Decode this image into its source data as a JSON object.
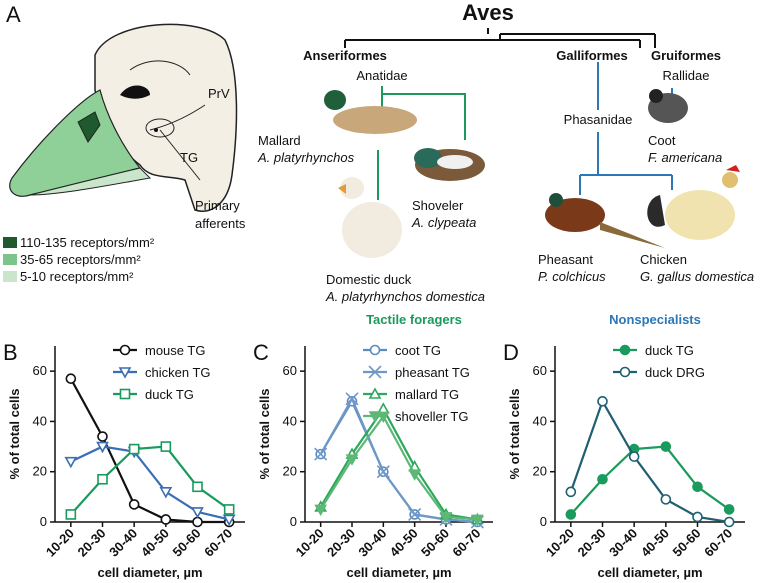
{
  "panel_a": {
    "label": "A",
    "prv": "PrV",
    "tg": "TG",
    "afferents": [
      "Primary",
      "afferents"
    ],
    "legend": [
      {
        "text": "110-135 receptors/mm²",
        "color": "#1e5a2d"
      },
      {
        "text": "35-65 receptors/mm²",
        "color": "#7cc48a"
      },
      {
        "text": "5-10 receptors/mm²",
        "color": "#c9e6cc"
      }
    ]
  },
  "tree": {
    "root": "Aves",
    "anseriformes": "Anseriformes",
    "anatidae": "Anatidae",
    "galliformes": "Galliformes",
    "gruiformes": "Gruiformes",
    "rallidae": "Rallidae",
    "phasanidae": "Phasanidae",
    "mallard": [
      "Mallard",
      "A. platyrhynchos"
    ],
    "shoveler": [
      "Shoveler",
      "A. clypeata"
    ],
    "domestic_duck": [
      "Domestic duck",
      "A. platyrhynchos domestica"
    ],
    "coot": [
      "Coot",
      "F. americana"
    ],
    "pheasant": [
      "Pheasant",
      "P. colchicus"
    ],
    "chicken": [
      "Chicken",
      "G. gallus domestica"
    ],
    "tactile": "Tactile foragers",
    "nonspecialists": "Nonspecialists"
  },
  "chart_data": [
    {
      "type": "line",
      "title": "B",
      "xlabel": "cell diameter, µm",
      "ylabel": "% of total cells",
      "categories": [
        "10-20",
        "20-30",
        "30-40",
        "40-50",
        "50-60",
        "60-70"
      ],
      "ylim": [
        0,
        70
      ],
      "yticks": [
        0,
        20,
        40,
        60
      ],
      "series": [
        {
          "name": "mouse TG",
          "color": "#111111",
          "marker": "circle-open",
          "values": [
            57,
            34,
            7,
            1,
            0,
            0
          ]
        },
        {
          "name": "chicken TG",
          "color": "#3a6eb5",
          "marker": "tri-down-open",
          "values": [
            24,
            30,
            28,
            12,
            4,
            1
          ]
        },
        {
          "name": "duck TG",
          "color": "#1a9a5c",
          "marker": "square-open",
          "values": [
            3,
            17,
            29,
            30,
            14,
            5
          ]
        }
      ]
    },
    {
      "type": "line",
      "title": "C",
      "xlabel": "cell diameter, µm",
      "ylabel": "% of total cells",
      "categories": [
        "10-20",
        "20-30",
        "30-40",
        "40-50",
        "50-60",
        "60-70"
      ],
      "ylim": [
        0,
        70
      ],
      "yticks": [
        0,
        20,
        40,
        60
      ],
      "series": [
        {
          "name": "coot TG",
          "color": "#5a8cc2",
          "marker": "circle-open",
          "values": [
            27,
            48,
            20,
            3,
            1,
            0
          ]
        },
        {
          "name": "pheasant TG",
          "color": "#6f98c8",
          "marker": "x",
          "values": [
            27,
            49,
            20,
            3,
            1,
            0
          ]
        },
        {
          "name": "mallard TG",
          "color": "#2ea85c",
          "marker": "tri-up-open",
          "values": [
            6,
            27,
            45,
            22,
            3,
            1
          ]
        },
        {
          "name": "shoveller TG",
          "color": "#5cb875",
          "marker": "tri-down-filled",
          "values": [
            5,
            25,
            42,
            19,
            2,
            1
          ]
        }
      ]
    },
    {
      "type": "line",
      "title": "D",
      "xlabel": "cell diameter, µm",
      "ylabel": "% of total cells",
      "categories": [
        "10-20",
        "20-30",
        "30-40",
        "40-50",
        "50-60",
        "60-70"
      ],
      "ylim": [
        0,
        70
      ],
      "yticks": [
        0,
        20,
        40,
        60
      ],
      "series": [
        {
          "name": "duck TG",
          "color": "#1a9a5c",
          "marker": "circle-filled",
          "values": [
            3,
            17,
            29,
            30,
            14,
            5
          ]
        },
        {
          "name": "duck DRG",
          "color": "#1f5f72",
          "marker": "circle-open",
          "values": [
            12,
            48,
            26,
            9,
            2,
            0
          ]
        }
      ]
    }
  ]
}
